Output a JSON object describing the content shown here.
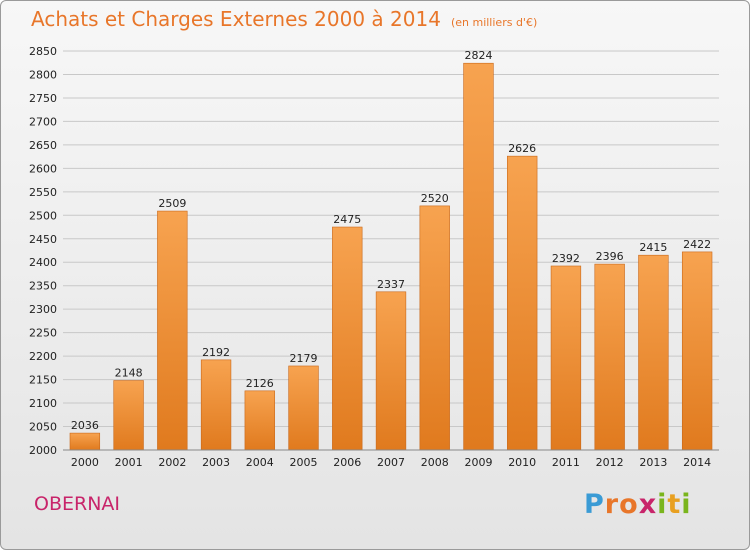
{
  "header": {
    "title": "Achats et Charges Externes 2000 à 2014",
    "subtitle": "(en milliers d'€)"
  },
  "footer": {
    "city": "OBERNAI",
    "brand": "Proxiti",
    "brand_letters": [
      {
        "ch": "P",
        "color": "#3a9bd5"
      },
      {
        "ch": "r",
        "color": "#e8762a"
      },
      {
        "ch": "o",
        "color": "#e8762a"
      },
      {
        "ch": "x",
        "color": "#c8246a"
      },
      {
        "ch": "i",
        "color": "#7ab51d"
      },
      {
        "ch": "t",
        "color": "#e8a020"
      },
      {
        "ch": "i",
        "color": "#7ab51d"
      }
    ]
  },
  "colors": {
    "bar_top": "#f7a350",
    "bar_bottom": "#e07a1e",
    "bar_edge": "#c9681a",
    "title": "#e8762a",
    "city": "#c8246a",
    "grid": "#c8c8c8"
  },
  "chart_data": {
    "type": "bar",
    "title": "Achats et Charges Externes 2000 à 2014",
    "subtitle": "(en milliers d'€)",
    "categories": [
      "2000",
      "2001",
      "2002",
      "2003",
      "2004",
      "2005",
      "2006",
      "2007",
      "2008",
      "2009",
      "2010",
      "2011",
      "2012",
      "2013",
      "2014"
    ],
    "values": [
      2036,
      2148,
      2509,
      2192,
      2126,
      2179,
      2475,
      2337,
      2520,
      2824,
      2626,
      2392,
      2396,
      2415,
      2422
    ],
    "ylim": [
      2000,
      2850
    ],
    "yticks": [
      2000,
      2050,
      2100,
      2150,
      2200,
      2250,
      2300,
      2350,
      2400,
      2450,
      2500,
      2550,
      2600,
      2650,
      2700,
      2750,
      2800,
      2850
    ],
    "grid": true,
    "data_labels": true
  }
}
